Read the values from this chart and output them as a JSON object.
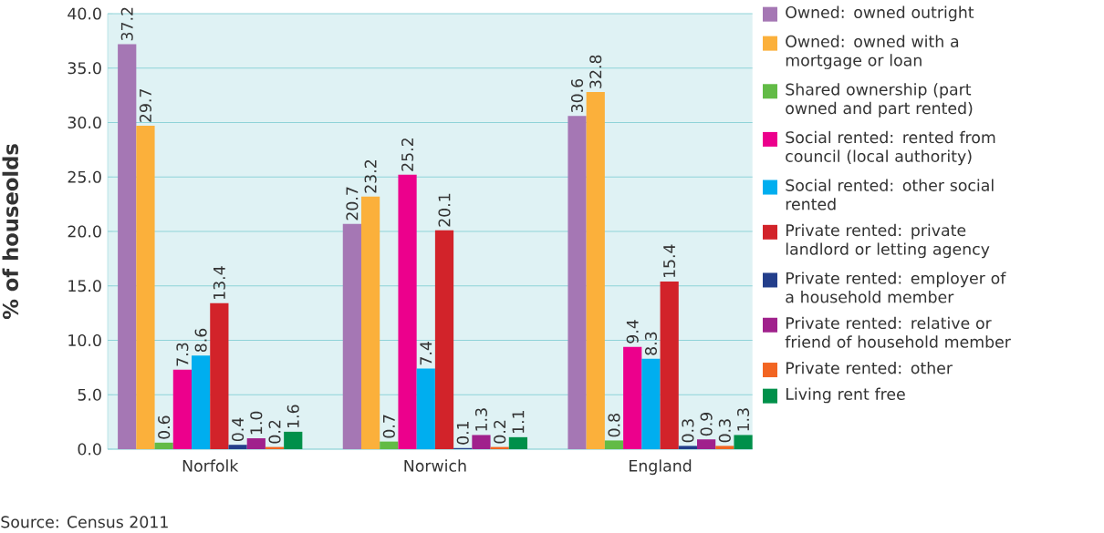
{
  "chart_data": {
    "type": "bar",
    "ylabel": "% of houseolds",
    "categories": [
      "Norfolk",
      "Norwich",
      "England"
    ],
    "series": [
      {
        "name": "Owned: owned outright",
        "color": "#a577b4",
        "values": [
          37.2,
          20.7,
          30.6
        ]
      },
      {
        "name": "Owned: owned with a mortgage or loan",
        "color": "#fbb03b",
        "values": [
          29.7,
          23.2,
          32.8
        ]
      },
      {
        "name": "Shared ownership (part owned and part rented)",
        "color": "#62bb46",
        "values": [
          0.6,
          0.7,
          0.8
        ]
      },
      {
        "name": "Social rented: rented from council (local authority)",
        "color": "#ec008c",
        "values": [
          7.3,
          25.2,
          9.4
        ]
      },
      {
        "name": "Social rented: other social rented",
        "color": "#00aeef",
        "values": [
          8.6,
          7.4,
          8.3
        ]
      },
      {
        "name": "Private rented: private landlord or letting agency",
        "color": "#d2232a",
        "values": [
          13.4,
          20.1,
          15.4
        ]
      },
      {
        "name": "Private rented: employer of a household member",
        "color": "#233e8b",
        "values": [
          0.4,
          0.1,
          0.3
        ]
      },
      {
        "name": "Private rented: relative or friend of household member",
        "color": "#a0218c",
        "values": [
          1.0,
          1.3,
          0.9
        ],
        "value_labels": [
          "1.0",
          "1.3",
          "0.9"
        ]
      },
      {
        "name": "Private rented: other",
        "color": "#f26522",
        "values": [
          0.2,
          0.2,
          0.3
        ]
      },
      {
        "name": "Living rent free",
        "color": "#00904a",
        "values": [
          1.6,
          1.1,
          1.3
        ]
      }
    ],
    "data_labels": true,
    "ylim": [
      0,
      40
    ],
    "yticks": [
      {
        "value": 0,
        "label": "0.0"
      },
      {
        "value": 5,
        "label": "5.0"
      },
      {
        "value": 10,
        "label": "10.0"
      },
      {
        "value": 15,
        "label": "15.0"
      },
      {
        "value": 20,
        "label": "20.0"
      },
      {
        "value": 25,
        "label": "25.0"
      },
      {
        "value": 30,
        "label": "30.0"
      },
      {
        "value": 35,
        "label": "35.0"
      },
      {
        "value": 40,
        "label": "40.0"
      }
    ],
    "grid": "y",
    "legend": "right",
    "annotations": [
      "Source: Census 2011"
    ]
  }
}
